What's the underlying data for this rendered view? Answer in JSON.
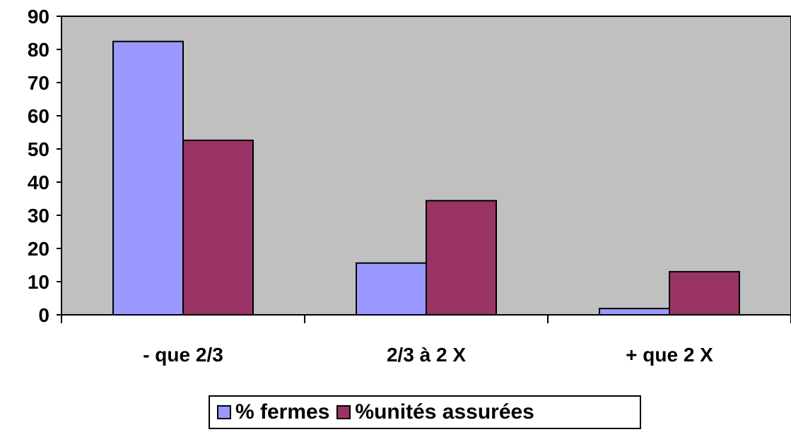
{
  "chart_data": {
    "type": "bar",
    "title": "",
    "xlabel": "",
    "ylabel": "",
    "categories": [
      "- que 2/3",
      "2/3 à 2 X",
      "+ que 2 X"
    ],
    "series": [
      {
        "name": "% fermes",
        "values": [
          82.4,
          15.6,
          1.9
        ],
        "color": "#9999ff"
      },
      {
        "name": "%unités assurées",
        "values": [
          52.6,
          34.4,
          13.0
        ],
        "color": "#993366"
      }
    ],
    "ylim": [
      0,
      90
    ],
    "yticks": [
      0,
      10,
      20,
      30,
      40,
      50,
      60,
      70,
      80,
      90
    ],
    "grid": false,
    "plot_background": "#c0c0c0",
    "legend_position": "bottom"
  }
}
